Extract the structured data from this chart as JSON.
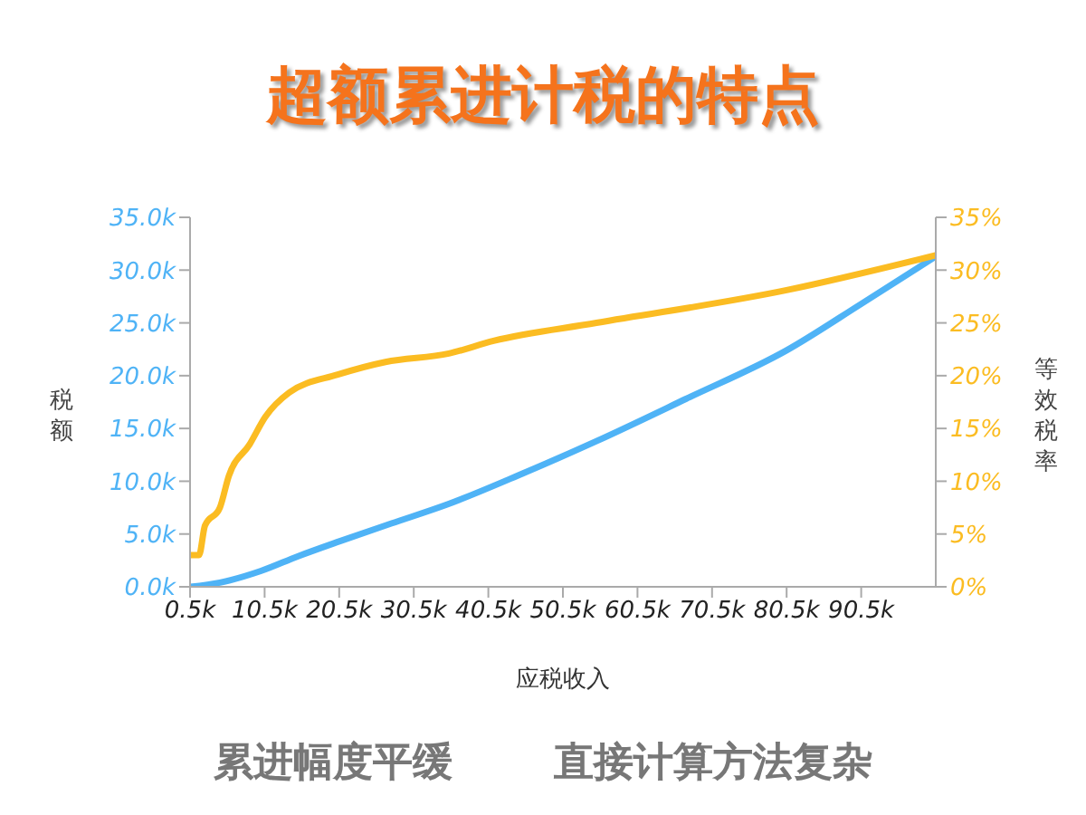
{
  "chart_data": {
    "type": "line",
    "title": "超额累进计税的特点",
    "xlabel": "应税收入",
    "ylabel": "税额",
    "y2label": "等效税率",
    "annotations": [
      "累进幅度平缓",
      "直接计算方法复杂"
    ],
    "xlim": [
      500,
      100500
    ],
    "xticks": [
      {
        "value": 500,
        "label": "0.5k"
      },
      {
        "value": 10500,
        "label": "10.5k"
      },
      {
        "value": 20500,
        "label": "20.5k"
      },
      {
        "value": 30500,
        "label": "30.5k"
      },
      {
        "value": 40500,
        "label": "40.5k"
      },
      {
        "value": 50500,
        "label": "50.5k"
      },
      {
        "value": 60500,
        "label": "60.5k"
      },
      {
        "value": 70500,
        "label": "70.5k"
      },
      {
        "value": 80500,
        "label": "80.5k"
      },
      {
        "value": 90500,
        "label": "90.5k"
      }
    ],
    "ylim": [
      0,
      35000
    ],
    "yticks": [
      {
        "value": 0,
        "label": "0.0k"
      },
      {
        "value": 5000,
        "label": "5.0k"
      },
      {
        "value": 10000,
        "label": "10.0k"
      },
      {
        "value": 15000,
        "label": "15.0k"
      },
      {
        "value": 20000,
        "label": "20.0k"
      },
      {
        "value": 25000,
        "label": "25.0k"
      },
      {
        "value": 30000,
        "label": "30.0k"
      },
      {
        "value": 35000,
        "label": "35.0k"
      }
    ],
    "y2lim": [
      0,
      35
    ],
    "y2ticks": [
      {
        "value": 0,
        "label": "0%"
      },
      {
        "value": 5,
        "label": "5%"
      },
      {
        "value": 10,
        "label": "10%"
      },
      {
        "value": 15,
        "label": "15%"
      },
      {
        "value": 20,
        "label": "20%"
      },
      {
        "value": 25,
        "label": "25%"
      },
      {
        "value": 30,
        "label": "30%"
      },
      {
        "value": 35,
        "label": "35%"
      }
    ],
    "marker": "none",
    "line_style": "solid",
    "series": [
      {
        "color": "#4fb3f6",
        "x": [
          500,
          4500,
          10000,
          15000,
          20500,
          27500,
          35000,
          45000,
          55000,
          67000,
          80500,
          90500,
          100500
        ],
        "values": [
          0,
          400,
          1500,
          2900,
          4300,
          6000,
          7800,
          10700,
          13800,
          17800,
          22400,
          26800,
          31300
        ]
      },
      {
        "color": "#fbbc22",
        "axis": "y2",
        "x": [
          500,
          1700,
          2500,
          4500,
          5700,
          8500,
          10600,
          13800,
          20300,
          26700,
          35200,
          41200,
          55000,
          80500,
          100500
        ],
        "values": [
          3.0,
          3.0,
          5.8,
          7.5,
          10.5,
          13.5,
          16.1,
          18.4,
          20.1,
          21.3,
          22.1,
          23.3,
          25.0,
          28.1,
          31.4
        ]
      }
    ]
  }
}
